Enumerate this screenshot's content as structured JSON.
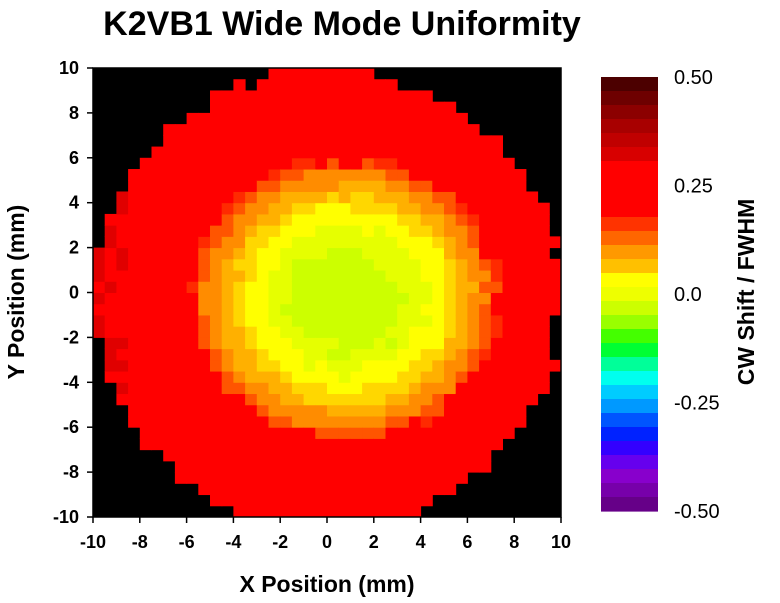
{
  "chart_data": {
    "type": "heatmap",
    "title": "K2VB1 Wide Mode Uniformity",
    "xlabel": "X Position (mm)",
    "ylabel": "Y Position (mm)",
    "colorbar_label": "CW Shift / FWHM",
    "xlim": [
      -10,
      10
    ],
    "ylim": [
      -10,
      10
    ],
    "x_ticks": [
      "-10",
      "-8",
      "-6",
      "-4",
      "-2",
      "0",
      "2",
      "4",
      "6",
      "8",
      "10"
    ],
    "y_ticks": [
      "10",
      "8",
      "6",
      "4",
      "2",
      "0",
      "-2",
      "-4",
      "-6",
      "-8",
      "-10"
    ],
    "colorbar_range": [
      -0.5,
      0.5
    ],
    "colorbar_ticks": [
      "0.50",
      "0.25",
      "0.0",
      "-0.25",
      "-0.50"
    ],
    "background_color": "#000000",
    "colorbar_colors": [
      "#4c0000",
      "#6e0000",
      "#8c0000",
      "#a80000",
      "#c00000",
      "#d80000",
      "#ff0000",
      "#ff0000",
      "#ff0000",
      "#ff0000",
      "#ff3300",
      "#ff6600",
      "#ff9900",
      "#ffc000",
      "#ffff00",
      "#eeff00",
      "#ccff00",
      "#99ff00",
      "#44ff00",
      "#00ff33",
      "#00ff99",
      "#00ffee",
      "#00ccff",
      "#0099ff",
      "#0055ff",
      "#0022ff",
      "#3300ff",
      "#6600ee",
      "#8800cc",
      "#7700aa",
      "#660088"
    ],
    "map_model": {
      "circle_center": [
        0,
        -0.3
      ],
      "circle_radius_mm": 10.0,
      "peak_value": 0.33,
      "yellow_center": [
        0.8,
        -0.3
      ],
      "inner_radius_mm": 6.5,
      "cell_size_mm": 0.5
    }
  }
}
